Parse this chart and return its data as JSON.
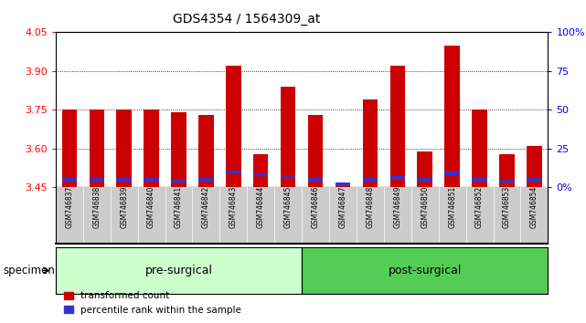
{
  "title": "GDS4354 / 1564309_at",
  "samples": [
    "GSM746837",
    "GSM746838",
    "GSM746839",
    "GSM746840",
    "GSM746841",
    "GSM746842",
    "GSM746843",
    "GSM746844",
    "GSM746845",
    "GSM746846",
    "GSM746847",
    "GSM746848",
    "GSM746849",
    "GSM746850",
    "GSM746851",
    "GSM746852",
    "GSM746853",
    "GSM746854"
  ],
  "transformed_count": [
    3.75,
    3.75,
    3.75,
    3.75,
    3.74,
    3.73,
    3.92,
    3.58,
    3.84,
    3.73,
    3.47,
    3.79,
    3.92,
    3.59,
    4.0,
    3.75,
    3.58,
    3.61
  ],
  "percentile_rank": [
    5,
    5,
    5,
    5,
    4,
    5,
    10,
    8,
    7,
    5,
    2,
    5,
    6,
    5,
    9,
    5,
    4,
    5
  ],
  "baseline": 3.45,
  "ylim_left": [
    3.45,
    4.05
  ],
  "ylim_right": [
    0,
    100
  ],
  "yticks_left": [
    3.45,
    3.6,
    3.75,
    3.9,
    4.05
  ],
  "yticks_right": [
    0,
    25,
    50,
    75,
    100
  ],
  "ytick_labels_right": [
    "0%",
    "25",
    "50",
    "75",
    "100%"
  ],
  "grid_values": [
    3.6,
    3.75,
    3.9
  ],
  "bar_color_red": "#CC0000",
  "bar_color_blue": "#3333CC",
  "pre_surgical_count": 9,
  "group_labels": [
    "pre-surgical",
    "post-surgical"
  ],
  "group_bg_pre": "#CCFFCC",
  "group_bg_post": "#55CC55",
  "specimen_label": "specimen",
  "legend_labels": [
    "transformed count",
    "percentile rank within the sample"
  ],
  "tick_bg_color": "#CCCCCC",
  "chart_bg": "#FFFFFF",
  "bar_width": 0.55
}
